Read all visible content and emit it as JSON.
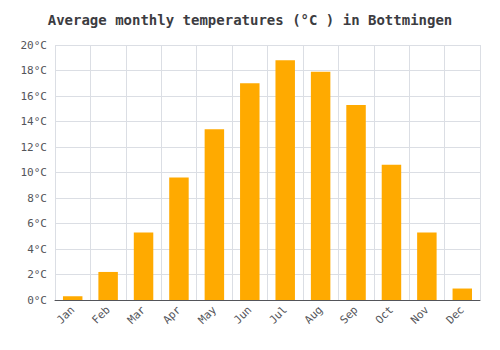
{
  "chart_data": {
    "type": "bar",
    "title": "Average monthly temperatures (°C ) in Bottmingen",
    "categories": [
      "Jan",
      "Feb",
      "Mar",
      "Apr",
      "May",
      "Jun",
      "Jul",
      "Aug",
      "Sep",
      "Oct",
      "Nov",
      "Dec"
    ],
    "values": [
      0.3,
      2.2,
      5.3,
      9.6,
      13.4,
      17.0,
      18.8,
      17.9,
      15.3,
      10.6,
      5.3,
      0.9
    ],
    "color": "#FFAA00",
    "ylim": [
      0,
      20
    ],
    "yticks": [
      {
        "value": 0,
        "label": "0°C"
      },
      {
        "value": 2,
        "label": "2°C"
      },
      {
        "value": 4,
        "label": "4°C"
      },
      {
        "value": 6,
        "label": "6°C"
      },
      {
        "value": 8,
        "label": "8°C"
      },
      {
        "value": 10,
        "label": "10°C"
      },
      {
        "value": 12,
        "label": "12°C"
      },
      {
        "value": 14,
        "label": "14°C"
      },
      {
        "value": 16,
        "label": "16°C"
      },
      {
        "value": 18,
        "label": "18°C"
      },
      {
        "value": 20,
        "label": "20°C"
      }
    ],
    "grid": true
  }
}
